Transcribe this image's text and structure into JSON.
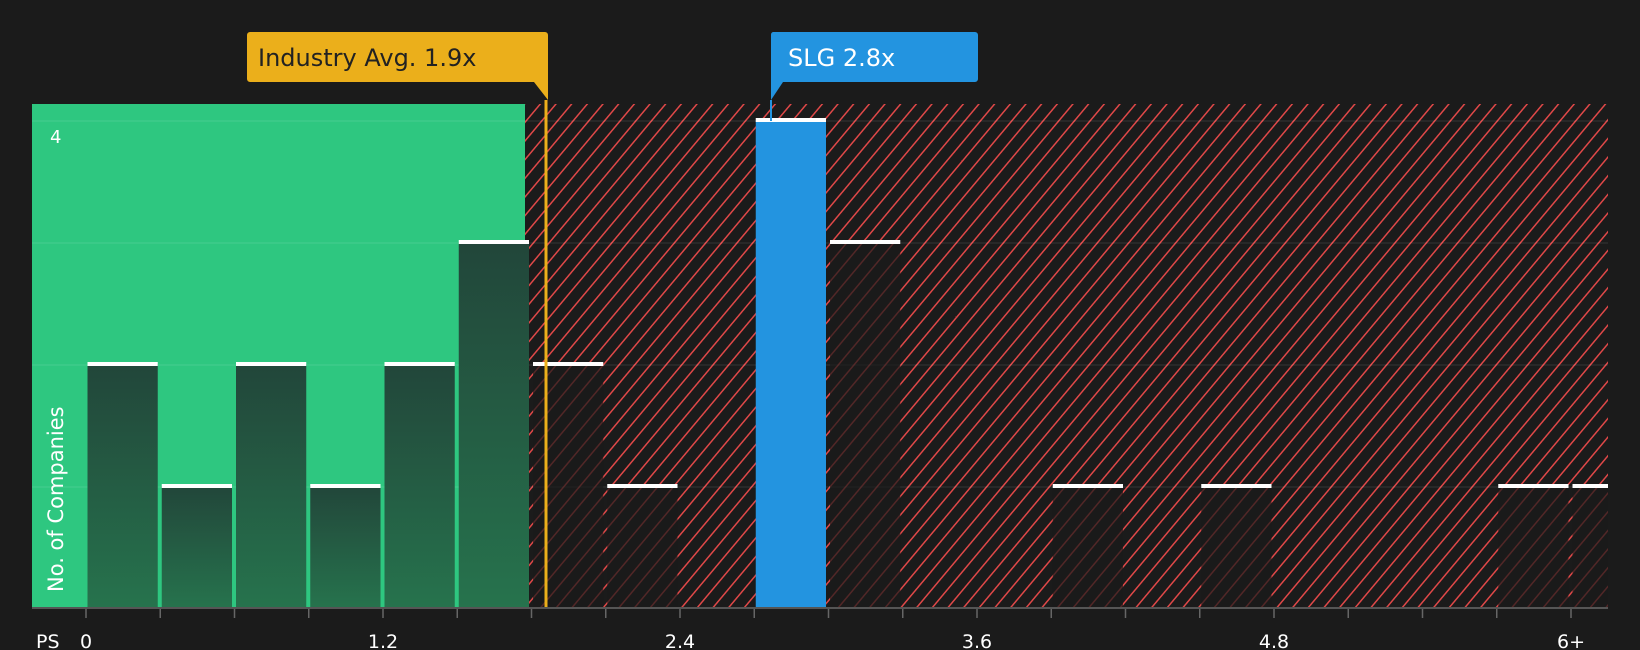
{
  "chart_data": {
    "type": "bar",
    "title": "",
    "xlabel": "PS",
    "ylabel": "No. of Companies",
    "x_tick_labels": [
      "0",
      "1.2",
      "2.4",
      "3.6",
      "4.8",
      "6+"
    ],
    "y_tick_labels": [
      "4"
    ],
    "ylim": [
      0,
      4
    ],
    "bin_width": 0.3,
    "categories": [
      "0-0.3",
      "0.3-0.6",
      "0.6-0.9",
      "0.9-1.2",
      "1.2-1.5",
      "1.5-1.8",
      "1.8-2.1",
      "2.1-2.4",
      "2.4-2.7",
      "2.7-3.0",
      "3.0-3.3",
      "3.3-3.6",
      "3.6-3.9",
      "3.9-4.2",
      "4.2-4.5",
      "4.5-4.8",
      "4.8-5.1",
      "5.1-5.4",
      "5.4-5.7",
      "5.7-6.0",
      "6.0+"
    ],
    "values": [
      2,
      1,
      2,
      1,
      2,
      3,
      2,
      1,
      0,
      4,
      3,
      0,
      0,
      1,
      0,
      1,
      0,
      0,
      0,
      1,
      1
    ],
    "highlight_index": 9,
    "grid": true,
    "zones": {
      "undervalued_end": 1.77,
      "undervalued_color": "#2ec780",
      "overvalued_color": "#e04848"
    },
    "annotations": [
      {
        "label": "Industry Avg. 1.9x",
        "x": 1.9,
        "color": "#ebaf1b"
      },
      {
        "label": "SLG 2.8x",
        "x": 2.8,
        "color": "#2394e0"
      }
    ]
  },
  "labels": {
    "industry": "Industry Avg. 1.9x",
    "company": "SLG 2.8x",
    "ylabel": "No. of Companies",
    "xlabel": "PS",
    "ytick4": "4",
    "xt0": "0",
    "xt1": "1.2",
    "xt2": "2.4",
    "xt3": "3.6",
    "xt4": "4.8",
    "xt5": "6+"
  },
  "colors": {
    "background": "#1b1b1b",
    "green_zone": "#2ec780",
    "red_hatch": "#e04848",
    "industry": "#ebaf1b",
    "company": "#2394e0",
    "bar_cap": "#ffffff"
  }
}
